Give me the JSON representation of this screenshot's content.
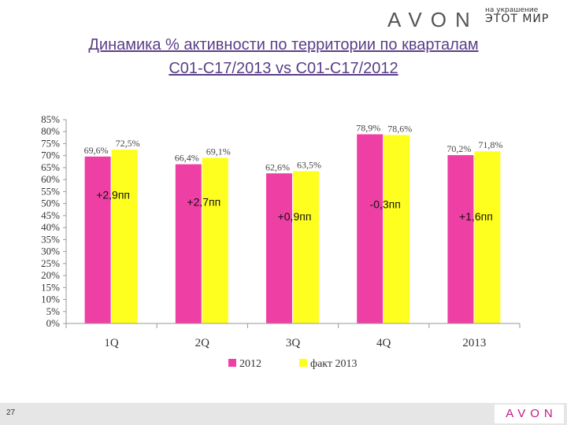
{
  "brand": {
    "logo_text": "AVON",
    "tagline_line1": "на украшение",
    "tagline_line2": "ЭТОТ МИР"
  },
  "title": {
    "line1": "Динамика % активности по территории по кварталам",
    "line2": "С01-С17/2013 vs С01-С17/2012"
  },
  "colors": {
    "series_2012": "#ee3fa4",
    "series_2013": "#ffff1f",
    "title": "#5a3f86",
    "accent": "#c2188a"
  },
  "chart_data": {
    "type": "bar",
    "categories": [
      "1Q",
      "2Q",
      "3Q",
      "4Q",
      "2013"
    ],
    "series": [
      {
        "name": "2012",
        "values": [
          69.6,
          66.4,
          62.6,
          78.9,
          70.2
        ],
        "labels": [
          "69,6%",
          "66,4%",
          "62,6%",
          "78,9%",
          "70,2%"
        ]
      },
      {
        "name": "факт 2013",
        "values": [
          72.5,
          69.1,
          63.5,
          78.6,
          71.8
        ],
        "labels": [
          "72,5%",
          "69,1%",
          "63,5%",
          "78,6%",
          "71,8%"
        ]
      }
    ],
    "differences": [
      "+2,9пп",
      "+2,7пп",
      "+0,9пп",
      "-0,3пп",
      "+1,6пп"
    ],
    "difference_levels": [
      52,
      49,
      43,
      48,
      43
    ],
    "ylim": [
      0,
      85
    ],
    "ytick_step": 5,
    "yticks": [
      "0%",
      "5%",
      "10%",
      "15%",
      "20%",
      "25%",
      "30%",
      "35%",
      "40%",
      "45%",
      "50%",
      "55%",
      "60%",
      "65%",
      "70%",
      "75%",
      "80%",
      "85%"
    ],
    "grid": false,
    "legend_position": "bottom"
  },
  "footer": {
    "page_number": "27",
    "logo_text": "AVON"
  }
}
